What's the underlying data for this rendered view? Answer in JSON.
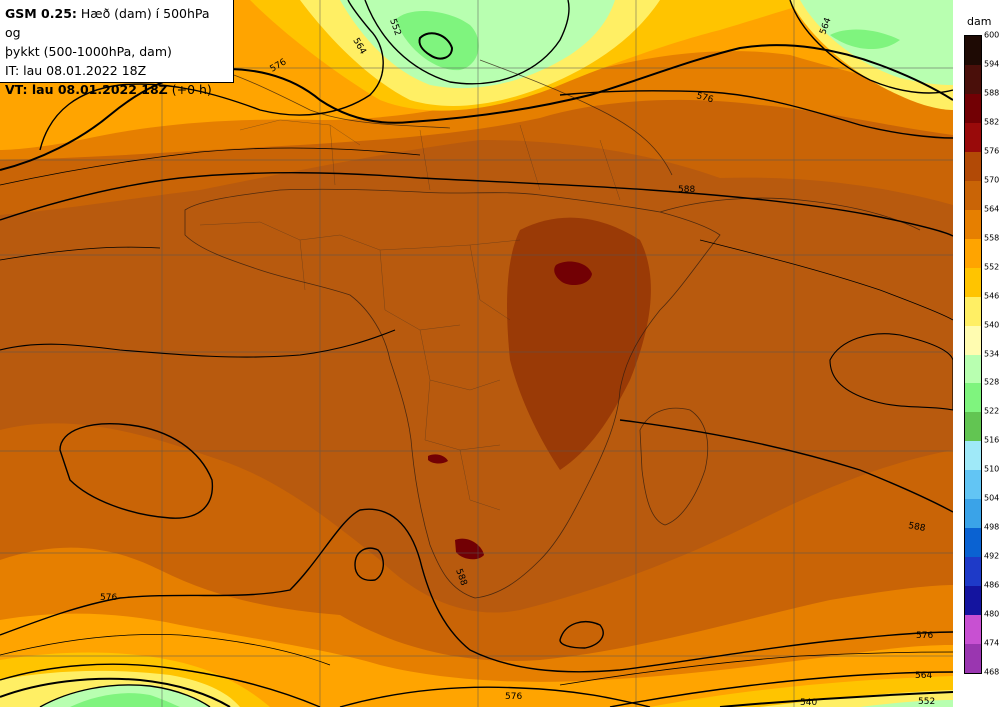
{
  "info": {
    "model": "GSM 0.25:",
    "desc1": "Hæð (dam) í 500hPa og",
    "desc2": "þykkt (500-1000hPa, dam)",
    "it": "IT: lau 08.01.2022 18Z",
    "vt": "VT: lau 08.01.2022 18Z",
    "vt_offset": "(+0 h)"
  },
  "legend": {
    "unit": "dam",
    "levels": [
      "600",
      "594",
      "588",
      "582",
      "576",
      "570",
      "564",
      "558",
      "552",
      "546",
      "540",
      "534",
      "528",
      "522",
      "516",
      "510",
      "504",
      "498",
      "492",
      "486",
      "480",
      "474",
      "468"
    ],
    "colors": [
      "#1e0a04",
      "#4a0f0a",
      "#720004",
      "#990a0a",
      "#b24a06",
      "#c96406",
      "#e67f00",
      "#ffa400",
      "#ffc400",
      "#ffef64",
      "#fffcb0",
      "#b8ffb0",
      "#7ff47e",
      "#62c552",
      "#9fe9f8",
      "#62c5f4",
      "#3aa3e8",
      "#0a62d2",
      "#1e3ac8",
      "#14149f",
      "#c850d2",
      "#9a36b0",
      "#6e2296"
    ]
  },
  "labels": {
    "c564_nw": "564",
    "c552_n": "552",
    "c576_nw": "576",
    "c564_ne": "564",
    "c576_n": "576",
    "c588_ne": "588",
    "c588_e": "588",
    "c576_sw": "576",
    "c576_se": "576",
    "c564_se": "564",
    "c552_se": "552",
    "c576_s": "576",
    "c540_s": "540",
    "c588_sa": "588"
  }
}
